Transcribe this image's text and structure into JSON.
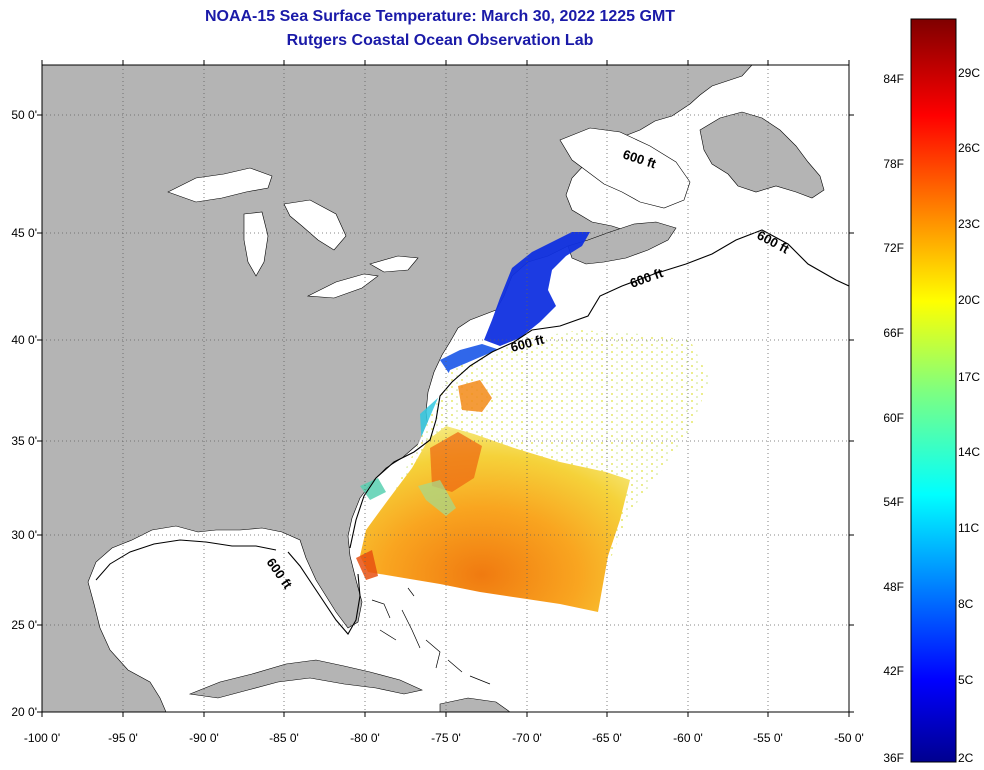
{
  "header": {
    "title": "NOAA-15 Sea Surface Temperature:  March 30, 2022 1225 GMT",
    "subtitle": "Rutgers Coastal Ocean Observation Lab"
  },
  "lat_labels": [
    "50 0'",
    "45 0'",
    "40 0'",
    "35 0'",
    "30 0'",
    "25 0'",
    "20 0'"
  ],
  "lon_labels": [
    "-100 0'",
    "-95 0'",
    "-90 0'",
    "-85 0'",
    "-80 0'",
    "-75 0'",
    "-70 0'",
    "-65 0'",
    "-60 0'",
    "-55 0'",
    "-50 0'"
  ],
  "isobath_label": "600 ft",
  "colorbar": {
    "fahrenheit": [
      "84F",
      "78F",
      "72F",
      "66F",
      "60F",
      "54F",
      "48F",
      "42F",
      "36F"
    ],
    "celsius": [
      "29C",
      "26C",
      "23C",
      "20C",
      "17C",
      "14C",
      "11C",
      "8C",
      "5C",
      "2C"
    ]
  },
  "colors": {
    "land": "#b4b4b4",
    "ocean": "#ffffff",
    "title": "#1a1aa8"
  }
}
